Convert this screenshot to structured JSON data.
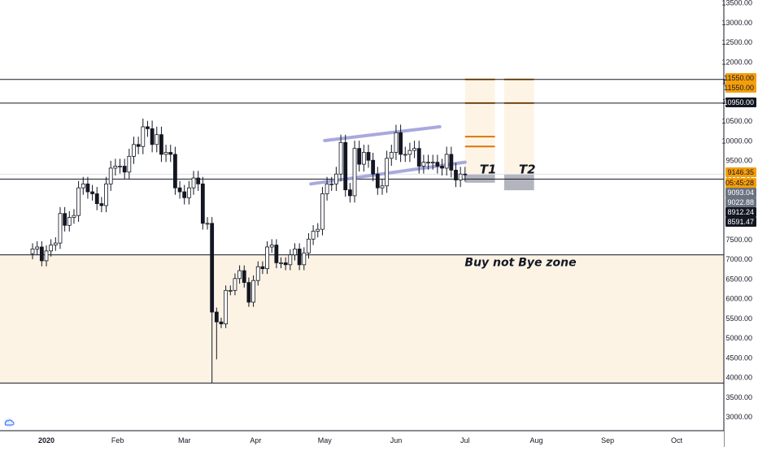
{
  "chart_data": {
    "type": "candlestick",
    "y_axis": {
      "ticks": [
        3000,
        3500,
        4000,
        4500,
        5000,
        5500,
        6000,
        6500,
        7000,
        7500,
        8000,
        8500,
        9000,
        9500,
        10000,
        10500,
        11000,
        11500,
        12000,
        12500,
        13000,
        13500
      ],
      "tick_labels": [
        "3000.00",
        "3500.00",
        "4000.00",
        "4500.00",
        "5000.00",
        "5500.00",
        "6000.00",
        "6500.00",
        "7000.00",
        "7500.00",
        "8000.00",
        "8500.00",
        "9000.00",
        "9500.00",
        "10000.00",
        "10500.00",
        "11000.00",
        "11500.00",
        "12000.00",
        "12500.00",
        "13000.00",
        "13500.00"
      ],
      "range": [
        2800,
        13600
      ]
    },
    "x_axis": {
      "labels": [
        {
          "text": "2020",
          "date": "2020-01-01",
          "bold": true
        },
        {
          "text": "Feb",
          "date": "2020-02-01"
        },
        {
          "text": "Mar",
          "date": "2020-03-01"
        },
        {
          "text": "Apr",
          "date": "2020-04-01"
        },
        {
          "text": "May",
          "date": "2020-05-01"
        },
        {
          "text": "Jun",
          "date": "2020-06-01"
        },
        {
          "text": "Jul",
          "date": "2020-07-01"
        },
        {
          "text": "Aug",
          "date": "2020-08-01"
        },
        {
          "text": "Sep",
          "date": "2020-09-01"
        },
        {
          "text": "Oct",
          "date": "2020-10-01"
        }
      ],
      "range": [
        "2019-12-24",
        "2020-10-23"
      ]
    },
    "close_series": [
      [
        "2019-12-26",
        7250
      ],
      [
        "2019-12-28",
        7300
      ],
      [
        "2019-12-30",
        6950
      ],
      [
        "2020-01-01",
        7200
      ],
      [
        "2020-01-03",
        7350
      ],
      [
        "2020-01-05",
        7400
      ],
      [
        "2020-01-07",
        8150
      ],
      [
        "2020-01-09",
        7850
      ],
      [
        "2020-01-11",
        8050
      ],
      [
        "2020-01-13",
        8100
      ],
      [
        "2020-01-15",
        8800
      ],
      [
        "2020-01-17",
        8900
      ],
      [
        "2020-01-19",
        8700
      ],
      [
        "2020-01-21",
        8650
      ],
      [
        "2020-01-23",
        8400
      ],
      [
        "2020-01-25",
        8350
      ],
      [
        "2020-01-27",
        8900
      ],
      [
        "2020-01-29",
        9300
      ],
      [
        "2020-01-31",
        9350
      ],
      [
        "2020-02-02",
        9350
      ],
      [
        "2020-02-04",
        9200
      ],
      [
        "2020-02-06",
        9600
      ],
      [
        "2020-02-08",
        9900
      ],
      [
        "2020-02-10",
        9850
      ],
      [
        "2020-02-12",
        10350
      ],
      [
        "2020-02-14",
        10300
      ],
      [
        "2020-02-16",
        9900
      ],
      [
        "2020-02-18",
        10150
      ],
      [
        "2020-02-20",
        9650
      ],
      [
        "2020-02-22",
        9700
      ],
      [
        "2020-02-24",
        9650
      ],
      [
        "2020-02-26",
        8800
      ],
      [
        "2020-02-28",
        8700
      ],
      [
        "2020-03-01",
        8550
      ],
      [
        "2020-03-03",
        8800
      ],
      [
        "2020-03-05",
        9050
      ],
      [
        "2020-03-07",
        8900
      ],
      [
        "2020-03-09",
        7900
      ],
      [
        "2020-03-11",
        7900
      ],
      [
        "2020-03-13",
        5650
      ],
      [
        "2020-03-15",
        5400
      ],
      [
        "2020-03-17",
        5350
      ],
      [
        "2020-03-19",
        6200
      ],
      [
        "2020-03-21",
        6200
      ],
      [
        "2020-03-23",
        6500
      ],
      [
        "2020-03-25",
        6700
      ],
      [
        "2020-03-27",
        6400
      ],
      [
        "2020-03-29",
        5900
      ],
      [
        "2020-03-31",
        6450
      ],
      [
        "2020-04-02",
        6800
      ],
      [
        "2020-04-04",
        6750
      ],
      [
        "2020-04-06",
        7300
      ],
      [
        "2020-04-08",
        7350
      ],
      [
        "2020-04-10",
        6900
      ],
      [
        "2020-04-12",
        6900
      ],
      [
        "2020-04-14",
        6850
      ],
      [
        "2020-04-16",
        7100
      ],
      [
        "2020-04-18",
        7250
      ],
      [
        "2020-04-20",
        6850
      ],
      [
        "2020-04-22",
        7150
      ],
      [
        "2020-04-24",
        7500
      ],
      [
        "2020-04-26",
        7700
      ],
      [
        "2020-04-28",
        7750
      ],
      [
        "2020-04-30",
        8650
      ],
      [
        "2020-05-02",
        8900
      ],
      [
        "2020-05-04",
        8900
      ],
      [
        "2020-05-06",
        9150
      ],
      [
        "2020-05-08",
        9950
      ],
      [
        "2020-05-10",
        8750
      ],
      [
        "2020-05-12",
        8600
      ],
      [
        "2020-05-14",
        9800
      ],
      [
        "2020-05-16",
        9400
      ],
      [
        "2020-05-18",
        9700
      ],
      [
        "2020-05-20",
        9500
      ],
      [
        "2020-05-22",
        9150
      ],
      [
        "2020-05-24",
        8800
      ],
      [
        "2020-05-26",
        8850
      ],
      [
        "2020-05-28",
        9550
      ],
      [
        "2020-05-30",
        9700
      ],
      [
        "2020-06-01",
        10200
      ],
      [
        "2020-06-03",
        9650
      ],
      [
        "2020-06-05",
        9650
      ],
      [
        "2020-06-07",
        9750
      ],
      [
        "2020-06-09",
        9800
      ],
      [
        "2020-06-11",
        9350
      ],
      [
        "2020-06-13",
        9450
      ],
      [
        "2020-06-15",
        9450
      ],
      [
        "2020-06-17",
        9450
      ],
      [
        "2020-06-19",
        9350
      ],
      [
        "2020-06-21",
        9300
      ],
      [
        "2020-06-23",
        9650
      ],
      [
        "2020-06-25",
        9250
      ],
      [
        "2020-06-27",
        9000
      ],
      [
        "2020-06-29",
        9150
      ],
      [
        "2020-07-01",
        9146
      ]
    ],
    "horizontal_lines": [
      11550,
      10950,
      9022.88,
      7100,
      3850
    ],
    "channel": {
      "upper": [
        [
          "2020-05-01",
          10000
        ],
        [
          "2020-06-20",
          10350
        ]
      ],
      "lower": [
        [
          "2020-04-25",
          8900
        ],
        [
          "2020-07-01",
          9450
        ]
      ]
    },
    "target_zones": [
      {
        "label": "T1",
        "from": "2020-07-01",
        "to": "2020-07-14",
        "top": 11550,
        "bottom": 9146.35,
        "levels": [
          11550,
          10950,
          10100,
          9850
        ],
        "stop_top": 9146.35,
        "stop_bottom": 8930
      },
      {
        "label": "T2",
        "from": "2020-07-18",
        "to": "2020-07-31",
        "top": 11550,
        "bottom": 9146.35,
        "levels": [
          11550,
          10950
        ],
        "stop_top": 9146.35,
        "stop_bottom": 8740
      }
    ],
    "buy_zone": {
      "label": "Buy not Bye zone",
      "top": 7100,
      "bottom": 3850
    },
    "price_labels": [
      {
        "text": "11550.00",
        "value": 11550,
        "bg": "#f59e0b",
        "fg": "#131722"
      },
      {
        "text": "11550.00",
        "value": 11550,
        "offset": 12,
        "bg": "#f59e0b",
        "fg": "#131722"
      },
      {
        "text": "10950.00",
        "value": 10950,
        "bg": "#131722",
        "fg": "#ffffff"
      },
      {
        "text": "9146.35",
        "value": 9146.35,
        "bg": "#f59e0b",
        "fg": "#131722"
      },
      {
        "text": "05:45:28",
        "value": 9146.35,
        "offset": 14,
        "bg": "#f59e0b",
        "fg": "#131722"
      },
      {
        "text": "9093.04",
        "value": 9093.04,
        "offset": 12,
        "bg": "#6b7280",
        "fg": "#ffffff"
      },
      {
        "text": "9022.88",
        "value": 9022.88,
        "offset": 12,
        "bg": "#6b7280",
        "fg": "#ffffff"
      },
      {
        "text": "8912.24",
        "value": 8912.24,
        "offset": 12,
        "bg": "#131722",
        "fg": "#ffffff"
      },
      {
        "text": "8591.47",
        "value": 8591.47,
        "offset": 12,
        "bg": "#131722",
        "fg": "#ffffff"
      }
    ],
    "colors": {
      "candle": "#131722",
      "zone_fill": "#fdf3e5",
      "target_line": "#d97706",
      "channel_line": "#9a9bd8",
      "stop_fill": "#b2b5be"
    },
    "icon": "tradingview-cloud-icon"
  }
}
